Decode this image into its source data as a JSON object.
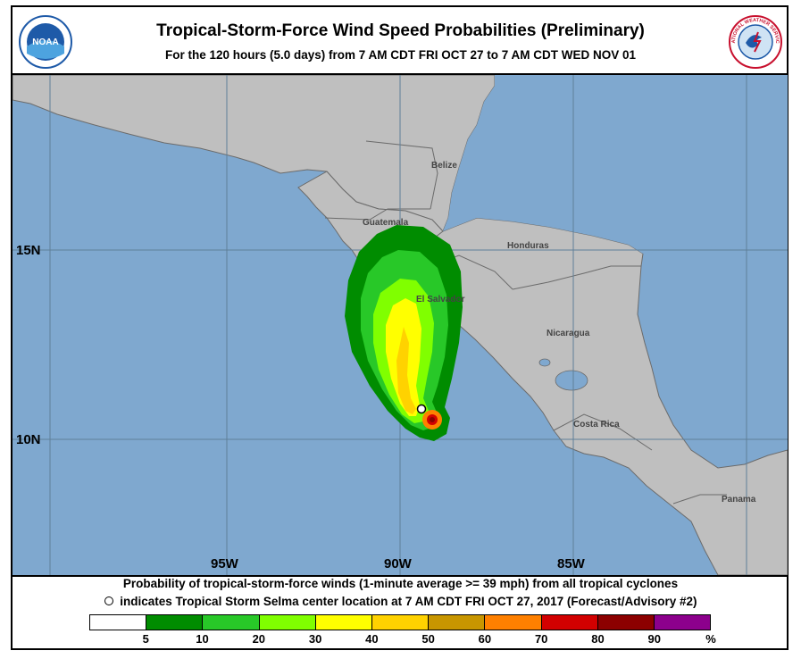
{
  "header": {
    "title": "Tropical-Storm-Force Wind Speed Probabilities (Preliminary)",
    "subtitle": "For the 120 hours (5.0 days) from 7 AM CDT FRI OCT 27 to 7 AM CDT WED NOV 01"
  },
  "logos": {
    "left": {
      "text": "NOAA",
      "color": "#1e5aa8"
    },
    "right": {
      "text": "NATIONAL WEATHER SERVICE",
      "color": "#c8102e"
    }
  },
  "map": {
    "colors": {
      "ocean": "#7fa8cf",
      "land": "#bfbfbf",
      "border": "#6b6b6b",
      "grid": "#5f7f99"
    },
    "longitude_labels": [
      "95W",
      "90W",
      "85W"
    ],
    "latitude_labels": [
      "15N",
      "10N"
    ],
    "places": [
      "Belize",
      "Guatemala",
      "Honduras",
      "El Salvador",
      "Nicaragua",
      "Costa Rica",
      "Panama"
    ],
    "storm_center_marker": "open-circle"
  },
  "footer": {
    "line1": "Probability of tropical-storm-force winds (1-minute average >= 39 mph) from all tropical cyclones",
    "line2": "indicates Tropical Storm Selma center location at 7 AM CDT FRI OCT 27, 2017 (Forecast/Advisory #2)"
  },
  "legend": {
    "colors": [
      "#ffffff",
      "#008c00",
      "#28c828",
      "#80ff00",
      "#ffff00",
      "#ffd200",
      "#c89600",
      "#ff8000",
      "#d20000",
      "#8c0000",
      "#8c008c"
    ],
    "ticks": [
      "5",
      "10",
      "20",
      "30",
      "40",
      "50",
      "60",
      "70",
      "80",
      "90",
      "%"
    ]
  }
}
